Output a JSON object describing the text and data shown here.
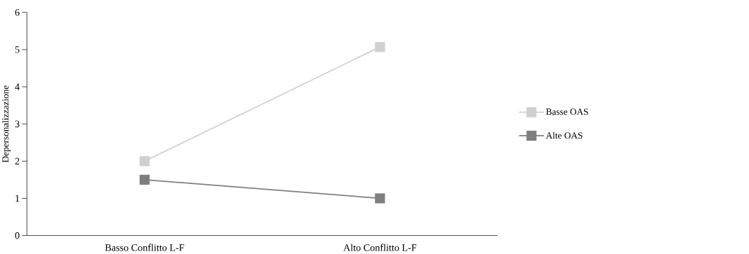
{
  "chart_data": {
    "type": "line",
    "ylabel": "Depersonalizzazione",
    "categories": [
      "Basso Conflitto L-F",
      "Alto Conflitto L-F"
    ],
    "series": [
      {
        "name": "Basse OAS",
        "color": "#d0d0d0",
        "values": [
          2.0,
          5.07
        ]
      },
      {
        "name": "Alte OAS",
        "color": "#7f7f7f",
        "values": [
          1.5,
          1.0
        ]
      }
    ],
    "ylim": [
      0,
      6
    ],
    "yticks": [
      0,
      1,
      2,
      3,
      4,
      5,
      6
    ],
    "legend": "right",
    "marker": "square",
    "line_style": "solid"
  }
}
